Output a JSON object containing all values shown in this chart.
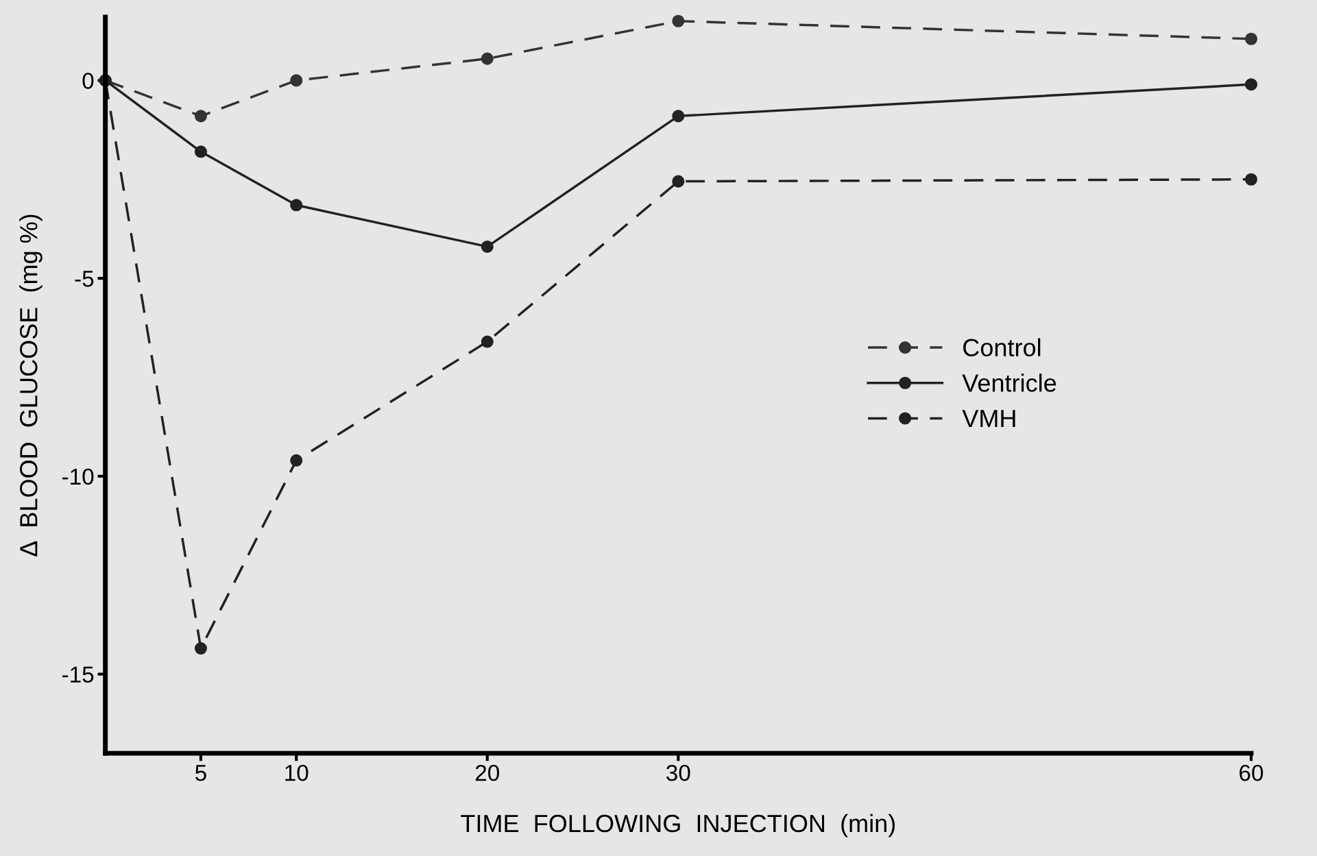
{
  "chart_data": {
    "type": "line",
    "xlabel": "TIME  FOLLOWING  INJECTION  (min)",
    "ylabel": "Δ  BLOOD  GLUCOSE  (mg %)",
    "x": [
      0,
      5,
      10,
      20,
      30,
      60
    ],
    "series": [
      {
        "name": "Control",
        "color": "#333333",
        "values": [
          0,
          -0.9,
          0,
          0.55,
          1.5,
          1.05
        ],
        "line_style": "dashed",
        "marker": "circle"
      },
      {
        "name": "Ventricle",
        "color": "#222222",
        "values": [
          0,
          -1.8,
          -3.15,
          -4.2,
          -0.9,
          -0.1
        ],
        "line_style": "solid",
        "marker": "circle"
      },
      {
        "name": "VMH",
        "color": "#222222",
        "values": [
          0,
          -14.35,
          -9.6,
          -6.6,
          -2.55,
          -2.5
        ],
        "line_style": "dashed",
        "marker": "circle"
      }
    ],
    "xlim": [
      0,
      60
    ],
    "ylim": [
      -17,
      1.6
    ],
    "xticks": [
      5,
      10,
      20,
      30,
      60
    ],
    "yticks": [
      0,
      {
        "value": -5,
        "label": "-5"
      },
      {
        "value": -10,
        "label": "-10"
      },
      {
        "value": -15,
        "label": "-15"
      }
    ],
    "grid": false,
    "legend": "right"
  }
}
